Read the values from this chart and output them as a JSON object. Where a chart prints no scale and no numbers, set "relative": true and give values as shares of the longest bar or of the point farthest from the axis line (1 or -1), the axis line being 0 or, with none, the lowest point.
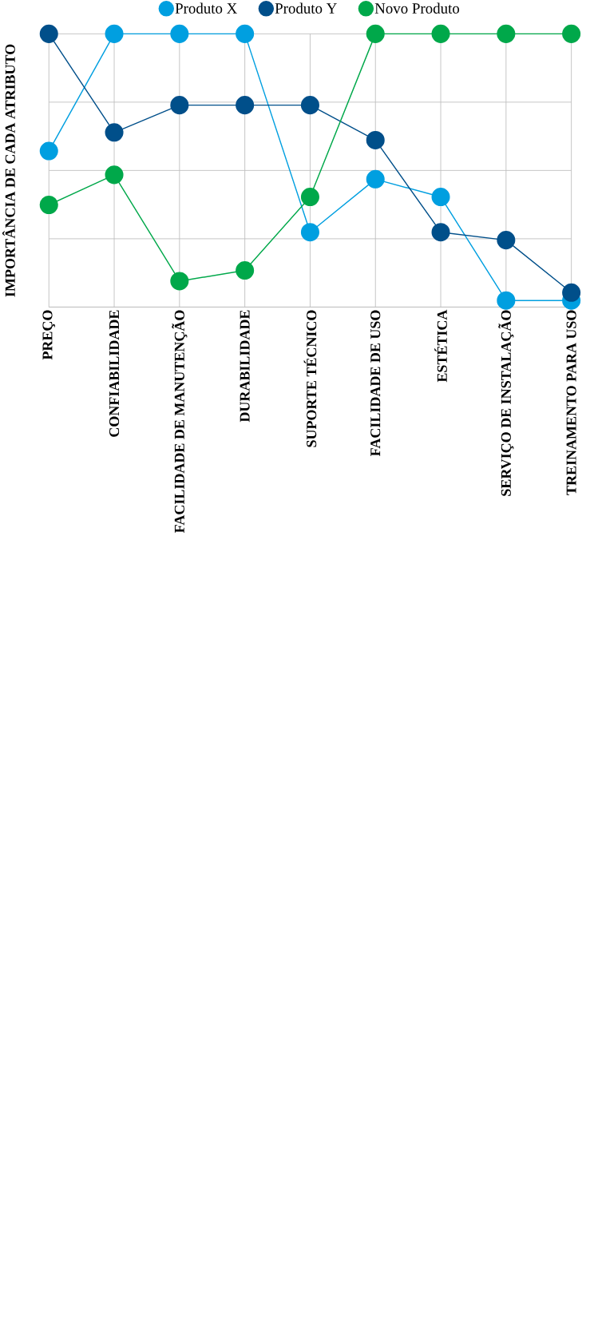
{
  "chart_data": {
    "type": "line",
    "relative": true,
    "ylabel": "IMPORTÂNCIA DE CADA ATRIBUTO",
    "categories": [
      "PREÇO",
      "CONFIABILIDADE",
      "FACILIDADE DE MANUTENÇÃO",
      "DURABILIDADE",
      "SUPORTE TÉCNICO",
      "FACILIDADE DE USO",
      "ESTÉTICA",
      "SERVIÇO DE INSTALAÇÃO",
      "TREINAMENTO PARA USO"
    ],
    "series": [
      {
        "name": "Produto X",
        "color": "#009fe0",
        "values": [
          0.571,
          1,
          1,
          1,
          0.274,
          0.468,
          0.403,
          0.024,
          0.024
        ]
      },
      {
        "name": "Produto Y",
        "color": "#004f8a",
        "values": [
          1,
          0.639,
          0.739,
          0.739,
          0.739,
          0.611,
          0.274,
          0.245,
          0.053
        ]
      },
      {
        "name": "Novo Produto",
        "color": "#00a84a",
        "values": [
          0.374,
          0.484,
          0.095,
          0.134,
          0.403,
          1,
          1,
          1,
          1
        ]
      }
    ],
    "grid": true,
    "legend": "top",
    "marker": "circle",
    "line_style": "solid"
  }
}
